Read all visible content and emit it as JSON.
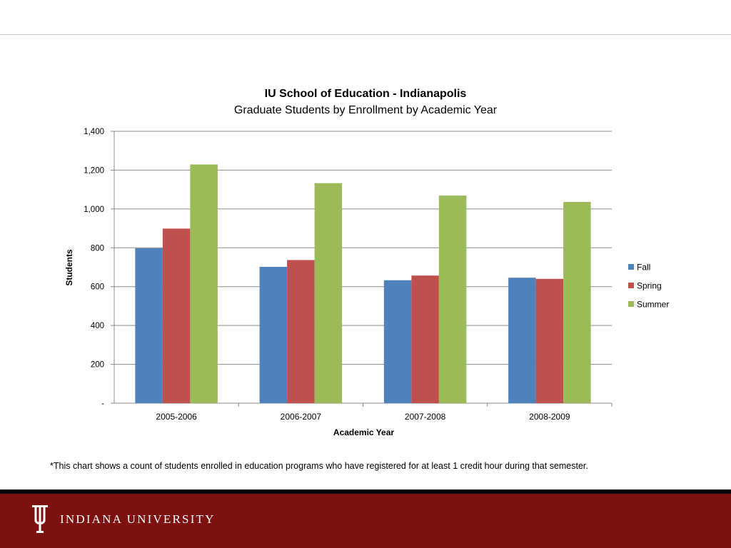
{
  "colors": {
    "fall": "#4f81bd",
    "spring": "#c0504d",
    "summer": "#9bbb59",
    "footer": "#7d110f"
  },
  "chart_data": {
    "type": "bar",
    "title": "IU School of Education - Indianapolis",
    "subtitle": "Graduate Students by Enrollment by Academic Year",
    "xlabel": "Academic Year",
    "ylabel": "Students",
    "categories": [
      "2005-2006",
      "2006-2007",
      "2007-2008",
      "2008-2009"
    ],
    "series": [
      {
        "name": "Fall",
        "color": "#4f81bd",
        "values": [
          798,
          702,
          633,
          646
        ]
      },
      {
        "name": "Spring",
        "color": "#c0504d",
        "values": [
          899,
          737,
          657,
          640
        ]
      },
      {
        "name": "Summer",
        "color": "#9bbb59",
        "values": [
          1229,
          1133,
          1069,
          1036
        ]
      }
    ],
    "ylim": [
      0,
      1400
    ],
    "yticks": [
      {
        "value": 0,
        "label": "-"
      },
      {
        "value": 200,
        "label": "200"
      },
      {
        "value": 400,
        "label": "400"
      },
      {
        "value": 600,
        "label": "600"
      },
      {
        "value": 800,
        "label": "800"
      },
      {
        "value": 1000,
        "label": "1,000"
      },
      {
        "value": 1200,
        "label": "1,200"
      },
      {
        "value": 1400,
        "label": "1,400"
      }
    ],
    "grid": true,
    "legend": "right"
  },
  "footnote": "*This chart shows a count of students enrolled in education programs who have registered for at least 1 credit hour during that semester.",
  "footer": {
    "wordmark": "INDIANA UNIVERSITY",
    "logo_icon": "iu-trident-icon"
  }
}
